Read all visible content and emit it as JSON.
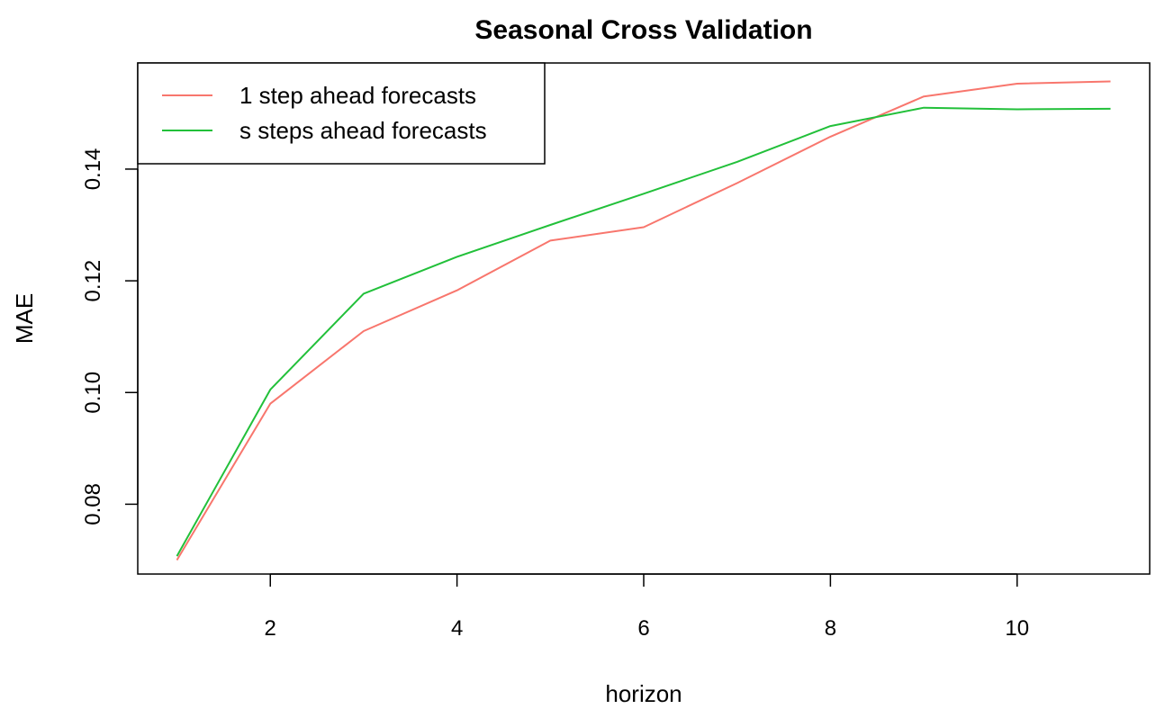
{
  "chart_data": {
    "type": "line",
    "title": "Seasonal Cross Validation",
    "xlabel": "horizon",
    "ylabel": "MAE",
    "x": [
      1,
      2,
      3,
      4,
      5,
      6,
      7,
      8,
      9,
      10,
      11
    ],
    "xlim": [
      0.58,
      11.42
    ],
    "ylim": [
      0.0675,
      0.159
    ],
    "x_ticks": [
      2,
      4,
      6,
      8,
      10
    ],
    "x_tick_labels": [
      "2",
      "4",
      "6",
      "8",
      "10"
    ],
    "y_ticks": [
      0.08,
      0.1,
      0.12,
      0.14
    ],
    "y_tick_labels": [
      "0.08",
      "0.10",
      "0.12",
      "0.14"
    ],
    "grid": false,
    "legend_position": "top-left",
    "series": [
      {
        "name": "1 step ahead forecasts",
        "color": "#F8766D",
        "values": [
          0.07,
          0.098,
          0.111,
          0.1183,
          0.1272,
          0.1296,
          0.1375,
          0.1458,
          0.153,
          0.1553,
          0.1557
        ]
      },
      {
        "name": "s steps ahead forecasts",
        "color": "#22C03A",
        "values": [
          0.0707,
          0.1005,
          0.1177,
          0.1243,
          0.13,
          0.1356,
          0.1413,
          0.1477,
          0.151,
          0.1507,
          0.1508
        ]
      }
    ]
  }
}
